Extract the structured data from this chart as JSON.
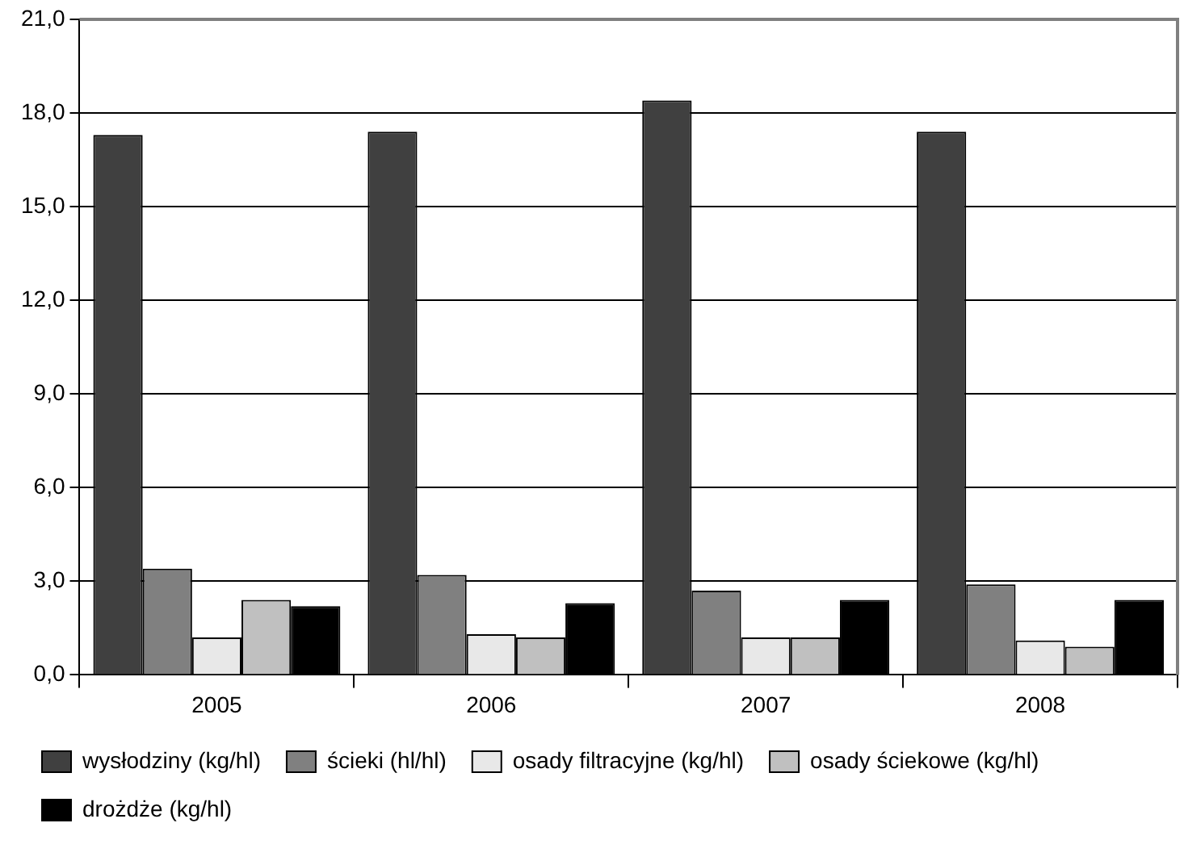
{
  "chart_data": {
    "type": "bar",
    "categories": [
      "2005",
      "2006",
      "2007",
      "2008"
    ],
    "series": [
      {
        "name": "wysłodziny (kg/hl)",
        "color": "#404040",
        "values": [
          17.3,
          17.4,
          18.4,
          17.4
        ]
      },
      {
        "name": "ścieki (hl/hl)",
        "color": "#808080",
        "values": [
          3.4,
          3.2,
          2.7,
          2.9
        ]
      },
      {
        "name": "osady filtracyjne (kg/hl)",
        "color": "#e8e8e8",
        "values": [
          1.2,
          1.3,
          1.2,
          1.1
        ]
      },
      {
        "name": "osady ściekowe (kg/hl)",
        "color": "#c0c0c0",
        "values": [
          2.4,
          1.2,
          1.2,
          0.9
        ]
      },
      {
        "name": "drożdże (kg/hl)",
        "color": "#000000",
        "values": [
          2.2,
          2.3,
          2.4,
          2.4
        ]
      }
    ],
    "ylim": [
      0,
      21
    ],
    "yticks": [
      {
        "value": 0,
        "label": "0,0"
      },
      {
        "value": 3,
        "label": "3,0"
      },
      {
        "value": 6,
        "label": "6,0"
      },
      {
        "value": 9,
        "label": "9,0"
      },
      {
        "value": 12,
        "label": "12,0"
      },
      {
        "value": 15,
        "label": "15,0"
      },
      {
        "value": 18,
        "label": "18,0"
      },
      {
        "value": 21,
        "label": "21,0"
      }
    ],
    "grid": "y",
    "legend": "bottom"
  }
}
